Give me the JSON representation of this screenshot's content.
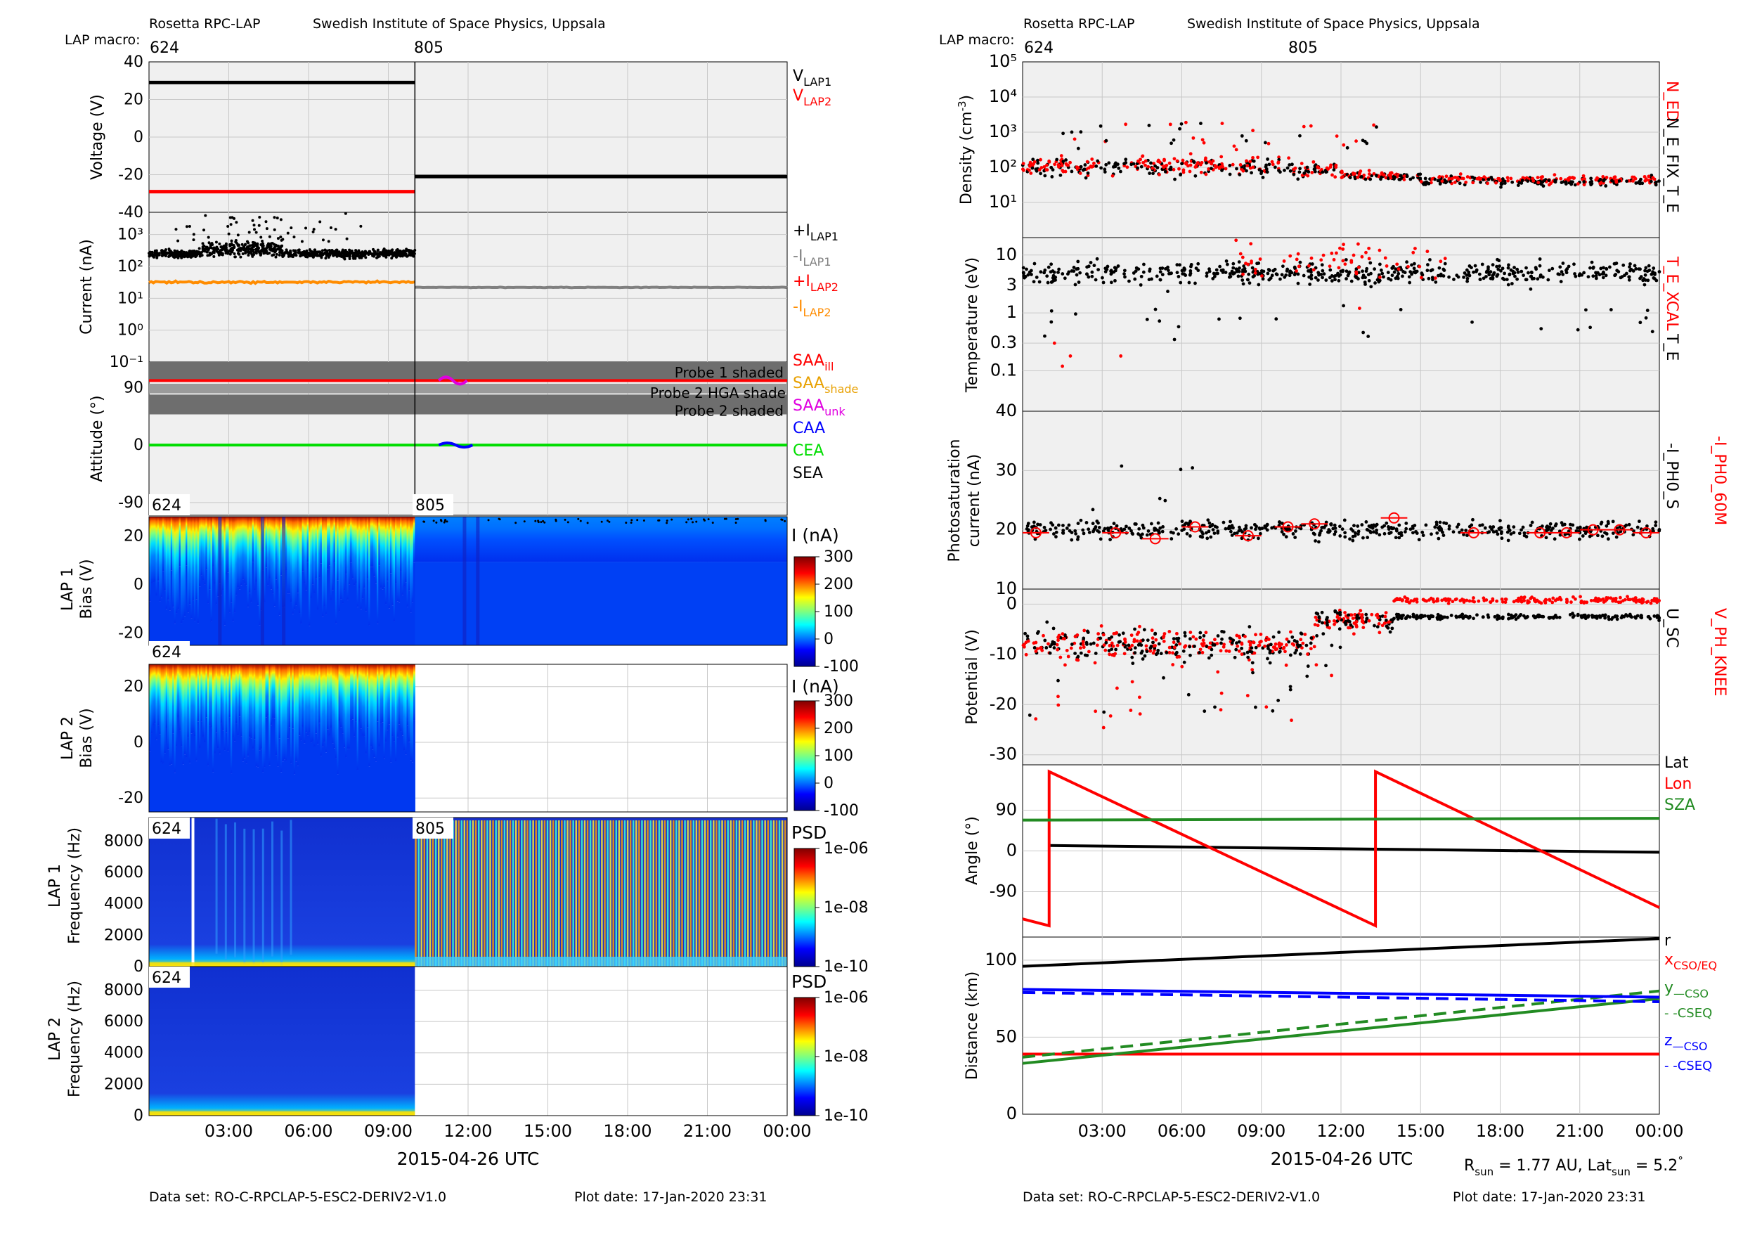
{
  "header": {
    "instrument": "Rosetta RPC-LAP",
    "institute": "Swedish Institute of Space Physics, Uppsala",
    "macro_label": "LAP macro:",
    "macro_first": "624",
    "macro_second": "805"
  },
  "time_axis": {
    "date_label": "2015-04-26 UTC",
    "ticks": [
      "03:00",
      "06:00",
      "09:00",
      "12:00",
      "15:00",
      "18:00",
      "21:00",
      "00:00"
    ],
    "xlim_hours": [
      0,
      24
    ],
    "macro_change_hour": 10.0
  },
  "footer": {
    "dataset": "Data set: RO-C-RPCLAP-5-ESC2-DERIV2-V1.0",
    "plot_date": "Plot date: 17-Jan-2020 23:31",
    "rsun_label": "R",
    "rsun_sub": "sun",
    "rsun_value": " = 1.77 AU, Lat",
    "lat_sub": "sun",
    "lat_value": " = 5.2",
    "deg": "°"
  },
  "colors": {
    "panel_bg": "#f0f0f0",
    "black": "#000000",
    "red": "#ff0000",
    "gray": "#808080",
    "orange": "#ff8c00",
    "magenta": "#e000e0",
    "blue": "#0000ff",
    "green": "#00dd00",
    "darkgreen": "#228b22",
    "shade": "#6e6e6e",
    "saa_shade": "#e8a000"
  },
  "labels": {
    "voltage_axis": "Voltage (V)",
    "current_axis": "Current (nA)",
    "attitude_axis": "Attitude (°)",
    "lap1": "LAP 1",
    "lap2": "LAP 2",
    "bias_axis": "Bias (V)",
    "freq_axis": "Frequency (Hz)",
    "i_na": "I (nA)",
    "psd": "PSD",
    "density_axis": "Density (cm",
    "density_exp": "-3",
    "density_close": ")",
    "temperature_axis": "Temperature (eV)",
    "photo_axis_1": "Photosaturation",
    "photo_axis_2": "current (nA)",
    "potential_axis": "Potential (V)",
    "angle_axis": "Angle (°)",
    "distance_axis": "Distance (km)",
    "probe1_shaded": "Probe 1 shaded",
    "probe2_hga": "Probe 2 HGA shade",
    "probe2_shaded": "Probe 2 shaded",
    "dens_leg_red": "N_ED",
    "dens_leg_black": "N_E_FIX_T_E",
    "temp_leg_red": "T_E_XCAL",
    "temp_leg_black": "T_E",
    "photo_leg_red": "-I_PH0_60M",
    "photo_leg_black": "-I_PH0_S",
    "pot_leg_red": "V_PH_KNEE",
    "pot_leg_black": "U_SC"
  },
  "legends": {
    "voltage": [
      {
        "main": "V",
        "sub": "LAP1",
        "color": "#000000"
      },
      {
        "main": "V",
        "sub": "LAP2",
        "color": "#ff0000"
      }
    ],
    "current": [
      {
        "main": "+I",
        "sub": "LAP1",
        "color": "#000000"
      },
      {
        "main": "-I",
        "sub": "LAP1",
        "color": "#808080"
      },
      {
        "main": "+I",
        "sub": "LAP2",
        "color": "#ff0000"
      },
      {
        "main": "-I",
        "sub": "LAP2",
        "color": "#ff8c00"
      }
    ],
    "attitude": [
      {
        "main": "SAA",
        "sub": "ill",
        "color": "#ff0000"
      },
      {
        "main": "SAA",
        "sub": "shade",
        "color": "#e8a000"
      },
      {
        "main": "SAA",
        "sub": "unk",
        "color": "#e000e0"
      },
      {
        "main": "CAA",
        "sub": "",
        "color": "#0000ff"
      },
      {
        "main": "CEA",
        "sub": "",
        "color": "#00dd00"
      },
      {
        "main": "SEA",
        "sub": "",
        "color": "#000000"
      }
    ],
    "angle": [
      {
        "main": "Lat",
        "sub": "",
        "color": "#000000"
      },
      {
        "main": "Lon",
        "sub": "",
        "color": "#ff0000"
      },
      {
        "main": "SZA",
        "sub": "",
        "color": "#228b22"
      }
    ],
    "distance": [
      {
        "main": "r",
        "sub": "",
        "color": "#000000"
      },
      {
        "main": "x",
        "sub": "CSO/EQ",
        "color": "#ff0000"
      },
      {
        "main": "y",
        "sub": "—CSO",
        "color": "#228b22"
      },
      {
        "main": " - -CSEQ",
        "sub": "",
        "color": "#228b22"
      },
      {
        "main": "z",
        "sub": "—CSO",
        "color": "#0000ff"
      },
      {
        "main": " - -CSEQ",
        "sub": "",
        "color": "#0000ff"
      }
    ]
  },
  "chart_data": [
    {
      "type": "line",
      "panel": "voltage",
      "ylabel": "Voltage (V)",
      "ylim": [
        -40,
        40
      ],
      "yticks": [
        "40",
        "20",
        "0",
        "-20",
        "-40"
      ],
      "series": [
        {
          "name": "V_LAP1",
          "x": [
            0,
            10,
            10,
            24
          ],
          "values": [
            29,
            29,
            -21,
            -21
          ]
        },
        {
          "name": "V_LAP2",
          "x": [
            0,
            10
          ],
          "values": [
            -29,
            -29
          ]
        }
      ]
    },
    {
      "type": "scatter",
      "panel": "current",
      "ylabel": "Current (nA)",
      "ylim": [
        0.1,
        5000
      ],
      "scale": "log",
      "yticks": [
        "10³",
        "10²",
        "10¹",
        "10⁰",
        "10⁻¹"
      ],
      "series": [
        {
          "name": "+I_LAP1",
          "x_range": [
            0,
            10
          ],
          "typical": 250
        },
        {
          "name": "-I_LAP1",
          "x_range": [
            10,
            24
          ],
          "typical": 22
        },
        {
          "name": "-I_LAP2",
          "x_range": [
            0,
            10
          ],
          "typical": 32
        }
      ]
    },
    {
      "type": "line",
      "panel": "attitude",
      "ylabel": "Attitude (°)",
      "ylim": [
        -110,
        130
      ],
      "yticks": [
        "90",
        "0",
        "-90"
      ],
      "series": [
        {
          "name": "SAA_ill",
          "values": [
            101
          ]
        },
        {
          "name": "CEA",
          "values": [
            0
          ]
        }
      ]
    },
    {
      "type": "heatmap",
      "panel": "lap1_sweep",
      "ylabel": "Bias (V)",
      "ylim": [
        -25,
        28
      ],
      "yticks": [
        "20",
        "0",
        "-20"
      ],
      "colorbar": {
        "label": "I (nA)",
        "ticks": [
          "300",
          "200",
          "100",
          "0",
          "-100"
        ]
      }
    },
    {
      "type": "heatmap",
      "panel": "lap2_sweep",
      "ylabel": "Bias (V)",
      "ylim": [
        -25,
        28
      ],
      "yticks": [
        "20",
        "0",
        "-20"
      ],
      "colorbar": {
        "label": "I (nA)",
        "ticks": [
          "300",
          "200",
          "100",
          "0",
          "-100"
        ]
      }
    },
    {
      "type": "heatmap",
      "panel": "lap1_psd",
      "ylabel": "Frequency (Hz)",
      "ylim": [
        0,
        9500
      ],
      "yticks": [
        "8000",
        "6000",
        "4000",
        "2000",
        "0"
      ],
      "colorbar": {
        "label": "PSD",
        "ticks": [
          "1e-06",
          "1e-08",
          "1e-10"
        ]
      }
    },
    {
      "type": "heatmap",
      "panel": "lap2_psd",
      "ylabel": "Frequency (Hz)",
      "ylim": [
        0,
        9500
      ],
      "yticks": [
        "8000",
        "6000",
        "4000",
        "2000",
        "0"
      ],
      "colorbar": {
        "label": "PSD",
        "ticks": [
          "1e-06",
          "1e-08",
          "1e-10"
        ]
      }
    },
    {
      "type": "scatter",
      "panel": "density",
      "ylabel": "Density (cm^-3)",
      "ylim": [
        1,
        100000
      ],
      "scale": "log",
      "yticks": [
        "10⁵",
        "10⁴",
        "10³",
        "10²",
        "10¹"
      ],
      "series": [
        {
          "name": "N_ED",
          "typical": 100
        },
        {
          "name": "N_E_FIX_T_E",
          "typical": 60
        }
      ]
    },
    {
      "type": "scatter",
      "panel": "temperature",
      "ylabel": "Temperature (eV)",
      "ylim": [
        0.02,
        20
      ],
      "scale": "log",
      "yticks": [
        "10",
        "3",
        "1",
        "0.3",
        "0.1"
      ],
      "series": [
        {
          "name": "T_E_XCAL",
          "typical": 6
        },
        {
          "name": "T_E",
          "typical": 5
        }
      ]
    },
    {
      "type": "scatter",
      "panel": "photo",
      "ylabel": "Photosaturation current (nA)",
      "ylim": [
        10,
        40
      ],
      "yticks": [
        "40",
        "30",
        "20",
        "10"
      ],
      "series": [
        {
          "name": "-I_PH0_60M",
          "x": [
            0.5,
            3.5,
            5,
            6.5,
            8.5,
            10,
            11,
            14,
            17,
            19.5,
            20.5,
            21.5,
            22.5,
            23.5
          ],
          "values": [
            19.5,
            19.5,
            18.5,
            20.5,
            19,
            20.5,
            21,
            22,
            19.5,
            19.5,
            19.5,
            20,
            20,
            19.5
          ]
        },
        {
          "name": "-I_PH0_S",
          "typical": 20
        }
      ]
    },
    {
      "type": "scatter",
      "panel": "potential",
      "ylabel": "Potential (V)",
      "ylim": [
        -32,
        3
      ],
      "yticks": [
        "0",
        "-10",
        "-20",
        "-30"
      ],
      "series": [
        {
          "name": "V_PH_KNEE",
          "typical": -6
        },
        {
          "name": "U_SC",
          "typical": -8
        }
      ]
    },
    {
      "type": "line",
      "panel": "angle",
      "ylabel": "Angle (°)",
      "ylim": [
        -190,
        190
      ],
      "yticks": [
        "90",
        "0",
        "-90"
      ],
      "series": [
        {
          "name": "Lat",
          "x": [
            1,
            24
          ],
          "values": [
            12,
            -3
          ]
        },
        {
          "name": "Lon",
          "x": [
            0,
            1,
            1,
            13.3,
            13.3,
            24
          ],
          "values": [
            -150,
            -165,
            175,
            -165,
            175,
            -125
          ]
        },
        {
          "name": "SZA",
          "x": [
            0,
            24
          ],
          "values": [
            68,
            72
          ]
        }
      ]
    },
    {
      "type": "line",
      "panel": "distance",
      "ylabel": "Distance (km)",
      "ylim": [
        0,
        115
      ],
      "yticks": [
        "100",
        "50",
        "0"
      ],
      "series": [
        {
          "name": "r",
          "x": [
            0,
            24
          ],
          "values": [
            96,
            114
          ]
        },
        {
          "name": "x CSO/EQ",
          "x": [
            0,
            24
          ],
          "values": [
            39,
            39
          ]
        },
        {
          "name": "y CSO",
          "x": [
            0,
            24
          ],
          "values": [
            33,
            75
          ]
        },
        {
          "name": "y CSEQ",
          "x": [
            0,
            24
          ],
          "values": [
            37,
            80
          ]
        },
        {
          "name": "z CSO",
          "x": [
            0,
            24
          ],
          "values": [
            81,
            76
          ]
        },
        {
          "name": "z CSEQ",
          "x": [
            0,
            24
          ],
          "values": [
            79,
            73
          ]
        }
      ]
    }
  ]
}
